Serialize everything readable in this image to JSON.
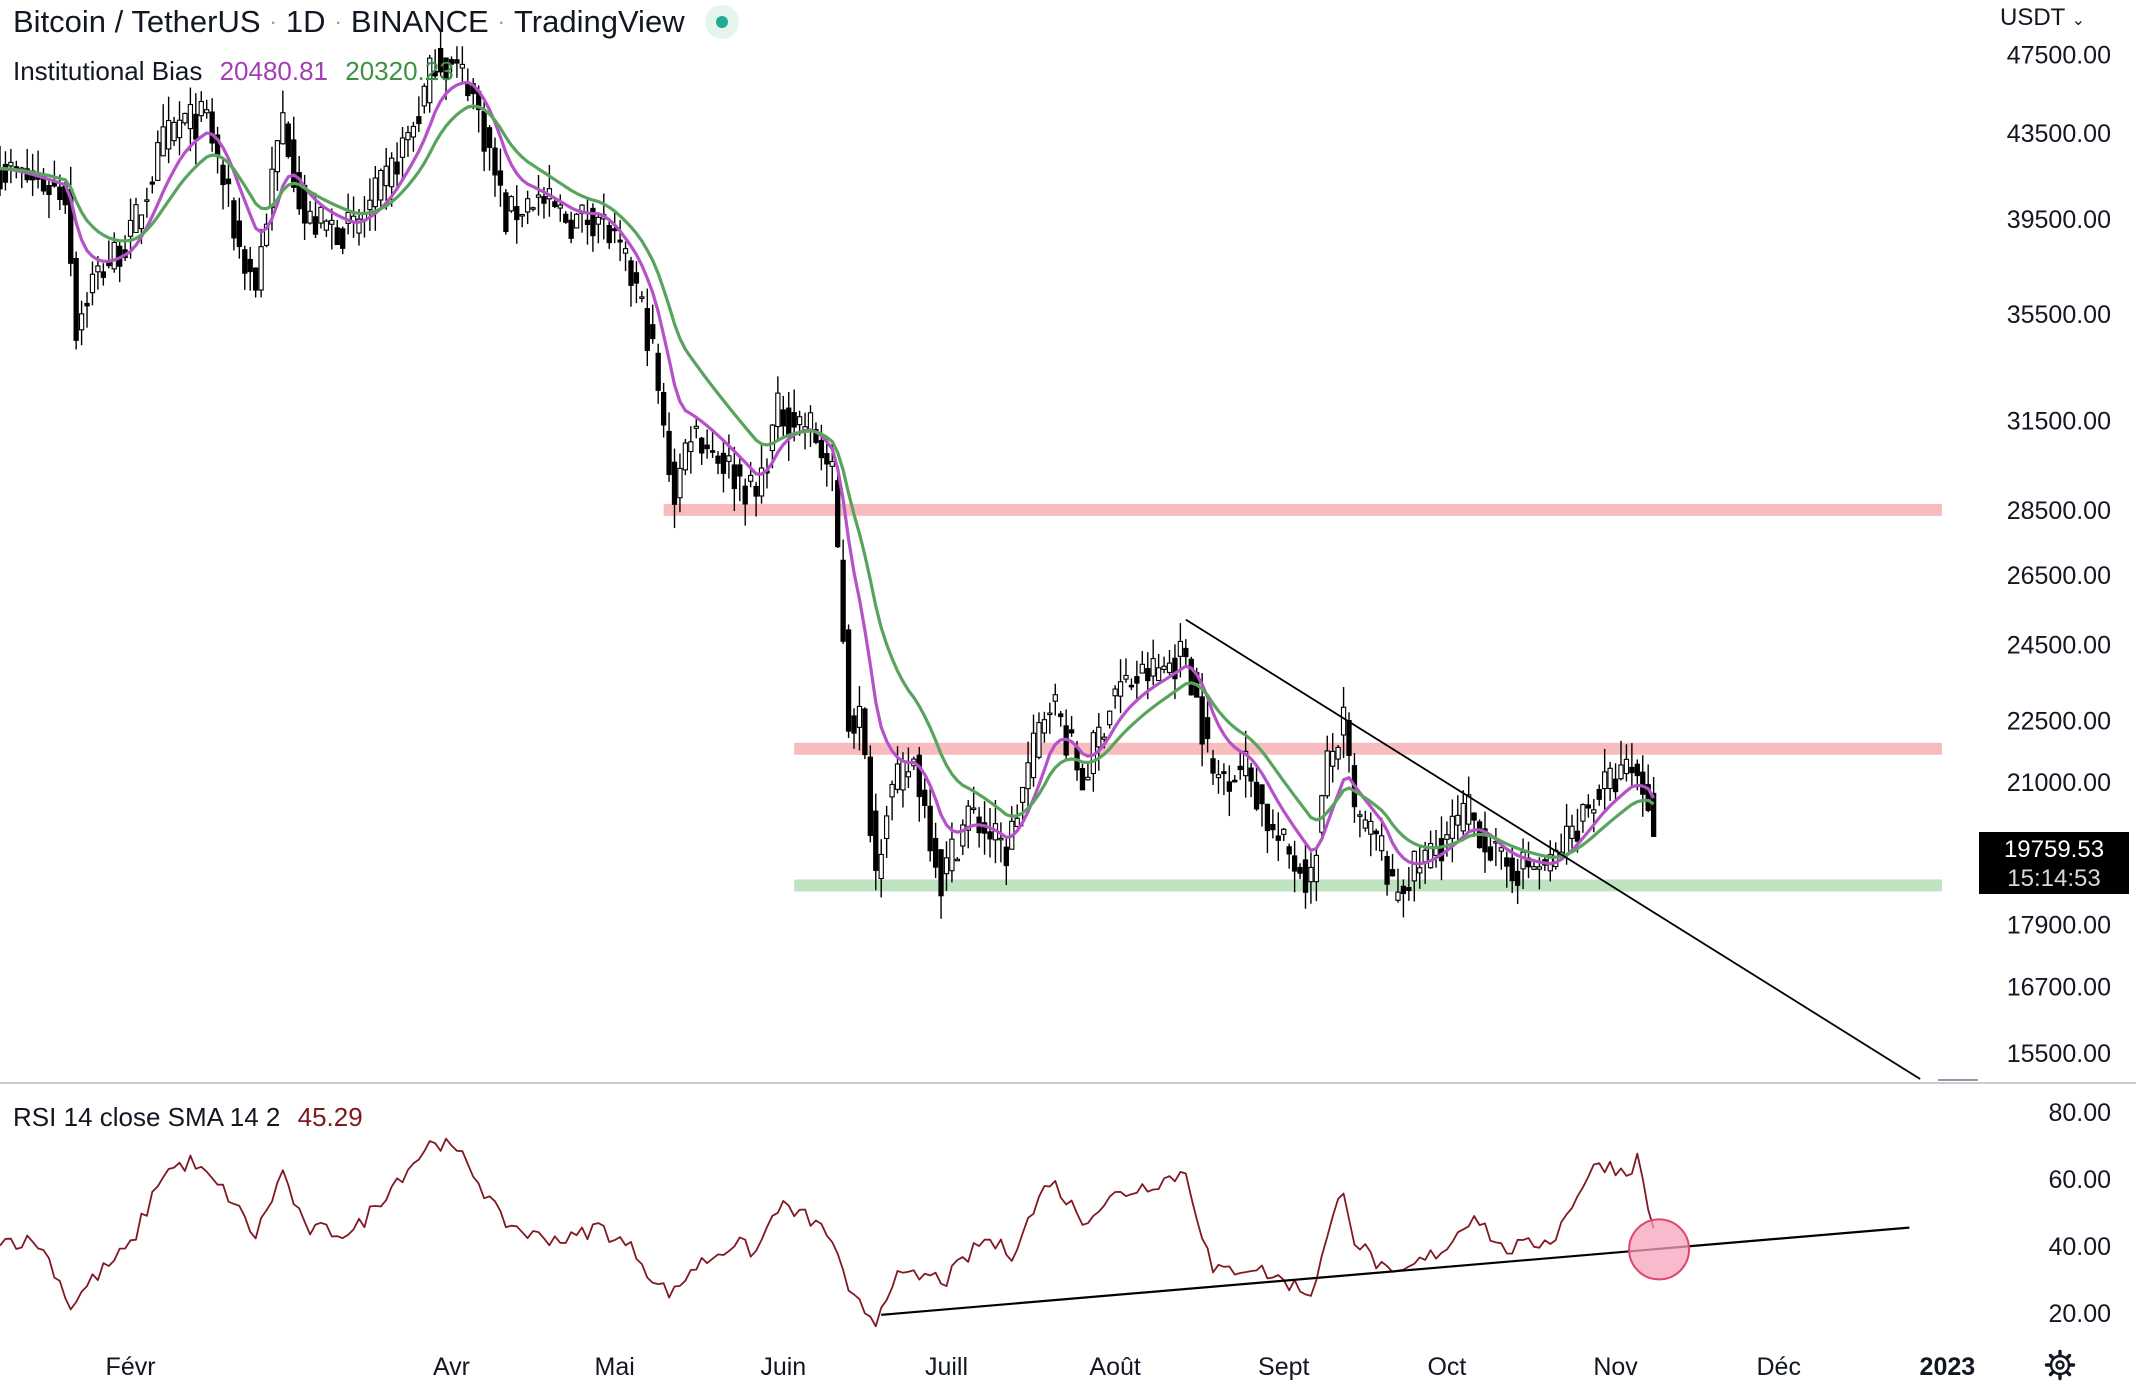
{
  "header": {
    "symbol": "Bitcoin / TetherUS",
    "interval": "1D",
    "exchange": "BINANCE",
    "platform": "TradingView",
    "currency_button": "USDT"
  },
  "indicator": {
    "name": "Institutional Bias",
    "value1": "20480.81",
    "value2": "20320.23"
  },
  "rsi": {
    "label": "RSI 14 close SMA 14 2",
    "value": "45.29"
  },
  "last_price": {
    "price": "19759.53",
    "countdown": "15:14:53"
  },
  "icons": {
    "settings": "gear-icon",
    "dropdown": "chevron-down-icon",
    "status": "live-dot-icon"
  },
  "colors": {
    "candle": "#000000",
    "ema_fast": "#b552c8",
    "ema_slow": "#58a45d",
    "resistance_zone": "#f8bcbe",
    "support_zone": "#bfe3c1",
    "rsi_line": "#801922",
    "trendline": "#000000",
    "marker": "#f5a3bb"
  },
  "chart_data": [
    {
      "type": "candlestick",
      "title": "Bitcoin / TetherUS 1D BINANCE",
      "y_scale": "log",
      "ylim": [
        15000,
        50500
      ],
      "x_range": [
        "2022-01-08",
        "2023-01-07"
      ],
      "y_ticks": [
        47500,
        43500,
        39500,
        35500,
        31500,
        28500,
        26500,
        24500,
        22500,
        21000,
        19759.53,
        17900,
        16700,
        15500
      ],
      "x_ticks": [
        {
          "label": "Févr",
          "date": "2022-02-01"
        },
        {
          "label": "Avr",
          "date": "2022-04-01"
        },
        {
          "label": "Mai",
          "date": "2022-05-01"
        },
        {
          "label": "Juin",
          "date": "2022-06-01"
        },
        {
          "label": "Juill",
          "date": "2022-07-01"
        },
        {
          "label": "Août",
          "date": "2022-08-01"
        },
        {
          "label": "Sept",
          "date": "2022-09-01"
        },
        {
          "label": "Oct",
          "date": "2022-10-01"
        },
        {
          "label": "Nov",
          "date": "2022-11-01"
        },
        {
          "label": "Déc",
          "date": "2022-12-01"
        },
        {
          "label": "2023",
          "date": "2023-01-01"
        }
      ],
      "close_anchors": [
        [
          "2022-01-08",
          41800
        ],
        [
          "2022-01-20",
          40700
        ],
        [
          "2022-01-22",
          35000
        ],
        [
          "2022-01-25",
          36900
        ],
        [
          "2022-02-01",
          38700
        ],
        [
          "2022-02-07",
          43000
        ],
        [
          "2022-02-10",
          44000
        ],
        [
          "2022-02-15",
          44200
        ],
        [
          "2022-02-21",
          38200
        ],
        [
          "2022-02-24",
          36700
        ],
        [
          "2022-03-01",
          44300
        ],
        [
          "2022-03-05",
          39400
        ],
        [
          "2022-03-14",
          39000
        ],
        [
          "2022-03-20",
          41200
        ],
        [
          "2022-03-26",
          44500
        ],
        [
          "2022-03-29",
          47400
        ],
        [
          "2022-04-04",
          46200
        ],
        [
          "2022-04-07",
          43500
        ],
        [
          "2022-04-11",
          39500
        ],
        [
          "2022-04-16",
          40500
        ],
        [
          "2022-04-23",
          39400
        ],
        [
          "2022-04-28",
          39700
        ],
        [
          "2022-05-05",
          36500
        ],
        [
          "2022-05-08",
          34000
        ],
        [
          "2022-05-10",
          31000
        ],
        [
          "2022-05-12",
          29000
        ],
        [
          "2022-05-15",
          31300
        ],
        [
          "2022-05-27",
          28900
        ],
        [
          "2022-05-31",
          31800
        ],
        [
          "2022-06-06",
          31300
        ],
        [
          "2022-06-10",
          29500
        ],
        [
          "2022-06-13",
          22500
        ],
        [
          "2022-06-15",
          22600
        ],
        [
          "2022-06-18",
          19000
        ],
        [
          "2022-06-20",
          20600
        ],
        [
          "2022-06-25",
          21500
        ],
        [
          "2022-06-30",
          18800
        ],
        [
          "2022-07-05",
          20300
        ],
        [
          "2022-07-12",
          19400
        ],
        [
          "2022-07-20",
          23200
        ],
        [
          "2022-07-26",
          21000
        ],
        [
          "2022-08-01",
          23300
        ],
        [
          "2022-08-10",
          23900
        ],
        [
          "2022-08-14",
          24300
        ],
        [
          "2022-08-19",
          21100
        ],
        [
          "2022-08-25",
          21400
        ],
        [
          "2022-08-30",
          19800
        ],
        [
          "2022-09-06",
          18800
        ],
        [
          "2022-09-09",
          21400
        ],
        [
          "2022-09-12",
          22400
        ],
        [
          "2022-09-14",
          20200
        ],
        [
          "2022-09-19",
          19500
        ],
        [
          "2022-09-21",
          18500
        ],
        [
          "2022-09-28",
          19400
        ],
        [
          "2022-10-05",
          20300
        ],
        [
          "2022-10-11",
          19100
        ],
        [
          "2022-10-20",
          19100
        ],
        [
          "2022-10-25",
          20100
        ],
        [
          "2022-10-29",
          20800
        ],
        [
          "2022-11-04",
          21300
        ],
        [
          "2022-11-07",
          20600
        ],
        [
          "2022-11-08",
          19759.53
        ]
      ],
      "institutional_bias": {
        "fast_last": 20480.81,
        "slow_last": 20320.23
      },
      "horizontal_zones": [
        {
          "kind": "resistance",
          "price": 28500,
          "from": "2022-05-10",
          "to": "2022-12-31"
        },
        {
          "kind": "resistance",
          "price": 21800,
          "from": "2022-06-03",
          "to": "2022-12-31"
        },
        {
          "kind": "support",
          "price": 18700,
          "from": "2022-06-03",
          "to": "2022-12-31"
        }
      ],
      "trendline": {
        "start": [
          "2022-08-14",
          25200
        ],
        "end": [
          "2022-12-27",
          15050
        ]
      },
      "last_value": 19759.53
    },
    {
      "type": "line",
      "title": "RSI 14 close SMA 14 2",
      "ylim": [
        12,
        88
      ],
      "y_ticks": [
        80,
        60,
        40,
        20
      ],
      "rsi_anchors": [
        [
          "2022-01-08",
          42
        ],
        [
          "2022-01-15",
          41
        ],
        [
          "2022-01-18",
          33
        ],
        [
          "2022-01-21",
          22
        ],
        [
          "2022-01-25",
          30
        ],
        [
          "2022-02-01",
          40
        ],
        [
          "2022-02-07",
          62
        ],
        [
          "2022-02-12",
          65
        ],
        [
          "2022-02-19",
          55
        ],
        [
          "2022-02-24",
          43
        ],
        [
          "2022-03-01",
          62
        ],
        [
          "2022-03-05",
          45
        ],
        [
          "2022-03-14",
          44
        ],
        [
          "2022-03-21",
          58
        ],
        [
          "2022-03-29",
          72
        ],
        [
          "2022-04-04",
          65
        ],
        [
          "2022-04-10",
          48
        ],
        [
          "2022-04-16",
          43
        ],
        [
          "2022-04-23",
          42
        ],
        [
          "2022-04-28",
          46
        ],
        [
          "2022-05-05",
          38
        ],
        [
          "2022-05-09",
          28
        ],
        [
          "2022-05-12",
          26
        ],
        [
          "2022-05-15",
          33
        ],
        [
          "2022-05-23",
          41
        ],
        [
          "2022-05-27",
          38
        ],
        [
          "2022-05-31",
          52
        ],
        [
          "2022-06-06",
          48
        ],
        [
          "2022-06-10",
          42
        ],
        [
          "2022-06-13",
          25
        ],
        [
          "2022-06-18",
          18
        ],
        [
          "2022-06-21",
          30
        ],
        [
          "2022-06-27",
          31
        ],
        [
          "2022-07-01",
          30
        ],
        [
          "2022-07-08",
          42
        ],
        [
          "2022-07-13",
          38
        ],
        [
          "2022-07-20",
          60
        ],
        [
          "2022-07-26",
          48
        ],
        [
          "2022-08-01",
          55
        ],
        [
          "2022-08-14",
          62
        ],
        [
          "2022-08-19",
          32
        ],
        [
          "2022-08-26",
          34
        ],
        [
          "2022-09-06",
          26
        ],
        [
          "2022-09-12",
          58
        ],
        [
          "2022-09-14",
          42
        ],
        [
          "2022-09-21",
          30
        ],
        [
          "2022-10-01",
          40
        ],
        [
          "2022-10-06",
          50
        ],
        [
          "2022-10-11",
          39
        ],
        [
          "2022-10-16",
          40
        ],
        [
          "2022-10-21",
          43
        ],
        [
          "2022-10-25",
          56
        ],
        [
          "2022-10-29",
          65
        ],
        [
          "2022-11-03",
          62
        ],
        [
          "2022-11-05",
          66
        ],
        [
          "2022-11-08",
          45.29
        ]
      ],
      "trendline": {
        "start": [
          "2022-06-19",
          19.5
        ],
        "end": [
          "2022-12-25",
          45.5
        ]
      },
      "highlight": {
        "date": "2022-11-09",
        "value": 39
      },
      "last_value": 45.29
    }
  ]
}
